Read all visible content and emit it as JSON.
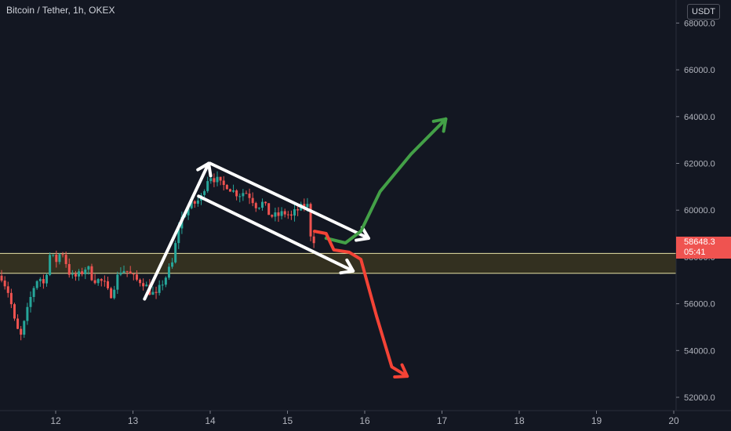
{
  "header": {
    "title": "Bitcoin / Tether, 1h, OKEX"
  },
  "axis_unit": "USDT",
  "last_price": {
    "value": "58648.3",
    "countdown": "05:41"
  },
  "colors": {
    "background": "#131722",
    "up_candle": "#26a69a",
    "down_candle": "#ef5350",
    "zone_fill": "#3a3520",
    "zone_border": "#e8e3a4",
    "drawing_white": "#ffffff",
    "drawing_green": "#43a047",
    "drawing_red": "#f44336"
  },
  "chart_data": {
    "type": "candlestick",
    "title": "Bitcoin / Tether, 1h, OKEX",
    "x_tick_labels": [
      "12",
      "13",
      "14",
      "15",
      "16",
      "17",
      "18",
      "19",
      "20"
    ],
    "y_tick_labels": [
      "52000.0",
      "54000.0",
      "56000.0",
      "58000.0",
      "60000.0",
      "62000.0",
      "64000.0",
      "66000.0",
      "68000.0"
    ],
    "ylim": [
      51700,
      68800
    ],
    "xlim": [
      11.3,
      20.0
    ],
    "support_zone": [
      57300,
      58150
    ],
    "last_price": 58648.3,
    "close_path": [
      [
        11.3,
        57200
      ],
      [
        11.4,
        56400
      ],
      [
        11.48,
        55000
      ],
      [
        11.55,
        54600
      ],
      [
        11.62,
        55500
      ],
      [
        11.7,
        56600
      ],
      [
        11.78,
        57200
      ],
      [
        11.85,
        56800
      ],
      [
        11.92,
        58100
      ],
      [
        12.0,
        57800
      ],
      [
        12.08,
        58300
      ],
      [
        12.12,
        57900
      ],
      [
        12.2,
        57100
      ],
      [
        12.3,
        57200
      ],
      [
        12.4,
        57600
      ],
      [
        12.48,
        57100
      ],
      [
        12.55,
        57000
      ],
      [
        12.62,
        56900
      ],
      [
        12.7,
        56300
      ],
      [
        12.78,
        57000
      ],
      [
        12.85,
        57500
      ],
      [
        12.92,
        57400
      ],
      [
        13.0,
        57100
      ],
      [
        13.05,
        57000
      ],
      [
        13.12,
        57000
      ],
      [
        13.2,
        56600
      ],
      [
        13.3,
        56300
      ],
      [
        13.38,
        56900
      ],
      [
        13.45,
        57300
      ],
      [
        13.52,
        57800
      ],
      [
        13.58,
        59200
      ],
      [
        13.65,
        59800
      ],
      [
        13.72,
        60100
      ],
      [
        13.8,
        60300
      ],
      [
        13.88,
        60500
      ],
      [
        13.95,
        61300
      ],
      [
        14.0,
        61500
      ],
      [
        14.08,
        61300
      ],
      [
        14.15,
        61000
      ],
      [
        14.22,
        61100
      ],
      [
        14.3,
        60800
      ],
      [
        14.38,
        60700
      ],
      [
        14.45,
        60800
      ],
      [
        14.52,
        60600
      ],
      [
        14.6,
        60200
      ],
      [
        14.68,
        60300
      ],
      [
        14.75,
        59900
      ],
      [
        14.82,
        59700
      ],
      [
        14.9,
        59800
      ],
      [
        14.98,
        59900
      ],
      [
        15.05,
        59700
      ],
      [
        15.12,
        60000
      ],
      [
        15.2,
        60100
      ],
      [
        15.25,
        60400
      ],
      [
        15.3,
        59000
      ],
      [
        15.36,
        58650
      ]
    ],
    "annotations": {
      "flagpole": [
        [
          13.15,
          56200
        ],
        [
          13.98,
          62000
        ]
      ],
      "channel_upper": [
        [
          14.0,
          62000
        ],
        [
          16.05,
          58800
        ]
      ],
      "channel_lower": [
        [
          13.85,
          60600
        ],
        [
          15.85,
          57400
        ]
      ],
      "green_scenario": [
        [
          15.5,
          58800
        ],
        [
          15.75,
          58600
        ],
        [
          15.95,
          59100
        ],
        [
          16.2,
          60800
        ],
        [
          16.6,
          62400
        ],
        [
          17.05,
          63900
        ]
      ],
      "red_scenario": [
        [
          15.35,
          59100
        ],
        [
          15.5,
          59000
        ],
        [
          15.6,
          58300
        ],
        [
          15.8,
          58200
        ],
        [
          15.95,
          57900
        ],
        [
          16.15,
          55500
        ],
        [
          16.35,
          53300
        ],
        [
          16.55,
          52900
        ]
      ]
    }
  }
}
